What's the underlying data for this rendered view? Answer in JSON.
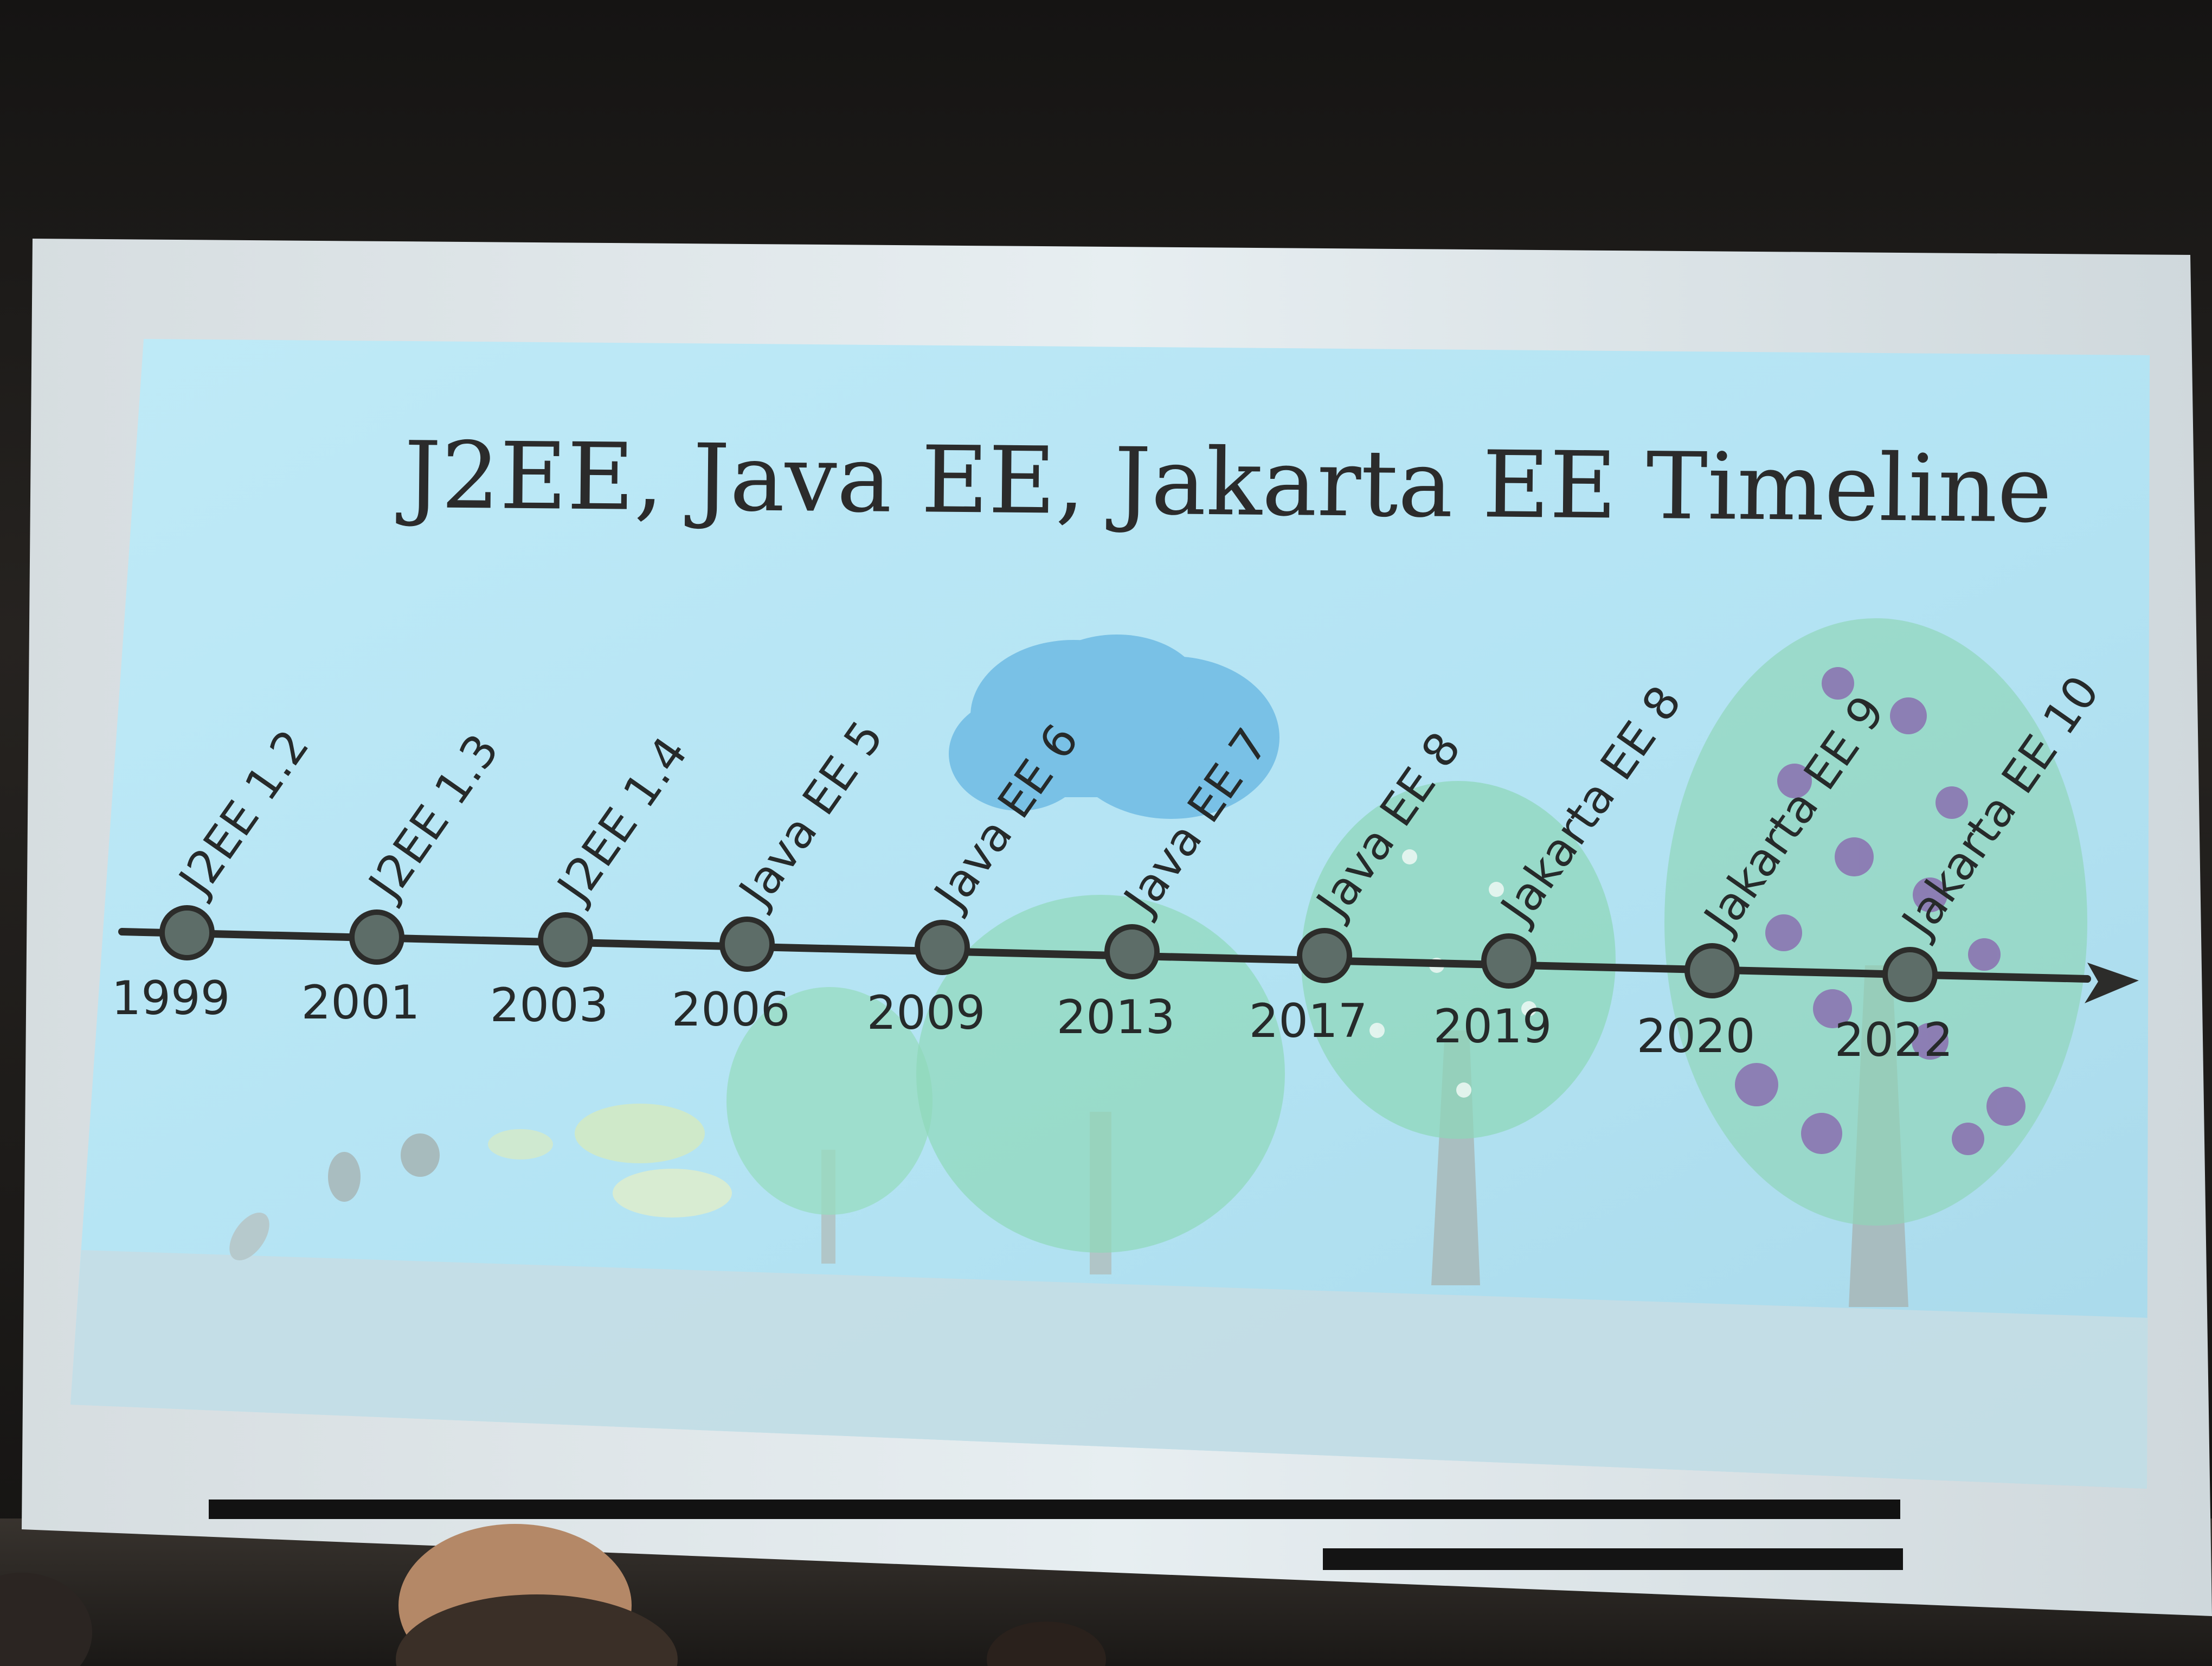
{
  "slide": {
    "title": "J2EE, Java EE, Jakarta EE Timeline"
  },
  "timeline": [
    {
      "year": "1999",
      "release": "J2EE 1.2"
    },
    {
      "year": "2001",
      "release": "J2EE 1.3"
    },
    {
      "year": "2003",
      "release": "J2EE 1.4"
    },
    {
      "year": "2006",
      "release": "Java EE 5"
    },
    {
      "year": "2009",
      "release": "Java EE 6"
    },
    {
      "year": "2013",
      "release": "Java EE 7"
    },
    {
      "year": "2017",
      "release": "Java EE 8"
    },
    {
      "year": "2019",
      "release": "Jakarta EE 8"
    },
    {
      "year": "2020",
      "release": "Jakarta EE 9"
    },
    {
      "year": "2022",
      "release": "Jakarta EE 10"
    }
  ],
  "colors": {
    "slide_background": "#b8e6f4",
    "timeline_line": "#2c2c2a",
    "milestone_dot": "#5d6d68",
    "foliage": "#8fd6b8",
    "blossom": "#8a6fb0",
    "cloud": "#7cc3e8",
    "ground": "#c9dde3"
  }
}
